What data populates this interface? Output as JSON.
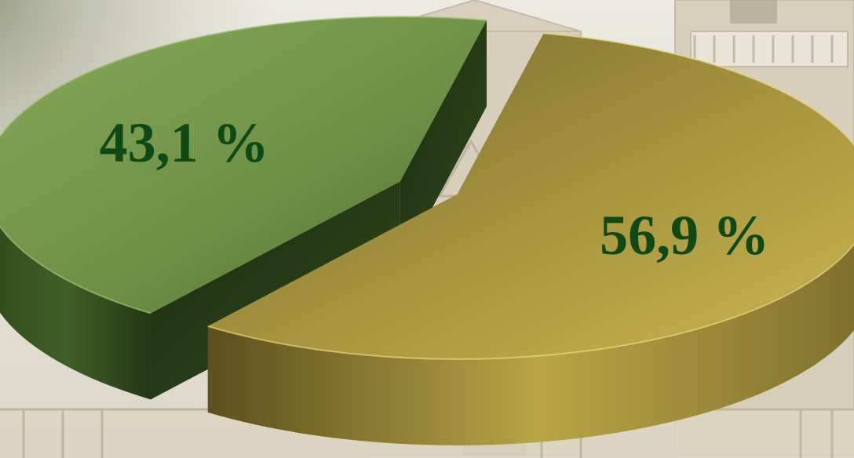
{
  "chart_data": {
    "type": "pie",
    "style": "3d-exploded",
    "title": "",
    "slices": [
      {
        "value": 56.9,
        "label": "56,9 %",
        "color": "#9c8a3c",
        "label_color": "#0f4a16"
      },
      {
        "value": 43.1,
        "label": "43,1 %",
        "color": "#6a8e45",
        "label_color": "#0f4a16"
      }
    ],
    "legend": "none"
  }
}
